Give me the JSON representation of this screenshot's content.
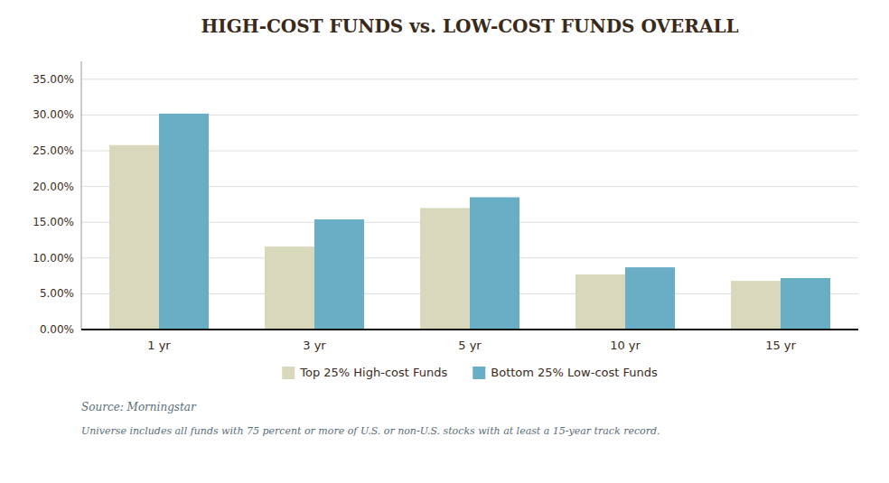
{
  "chart_data": {
    "type": "bar",
    "title": "HIGH-COST FUNDS vs. LOW-COST FUNDS OVERALL",
    "categories": [
      "1 yr",
      "3 yr",
      "5 yr",
      "10 yr",
      "15 yr"
    ],
    "series": [
      {
        "name": "Top 25% High-cost Funds",
        "color": "#d8d9bc",
        "values": [
          0.258,
          0.116,
          0.17,
          0.077,
          0.068
        ]
      },
      {
        "name": "Bottom 25% Low-cost Funds",
        "color": "#6aaec6",
        "values": [
          0.302,
          0.154,
          0.185,
          0.087,
          0.072
        ]
      }
    ],
    "ylim": [
      0,
      0.375
    ],
    "yticks": [
      {
        "value": 0.0,
        "label": "0.00%"
      },
      {
        "value": 0.05,
        "label": "5.00%"
      },
      {
        "value": 0.1,
        "label": "10.00%"
      },
      {
        "value": 0.15,
        "label": "15.00%"
      },
      {
        "value": 0.2,
        "label": "20.00%"
      },
      {
        "value": 0.25,
        "label": "25.00%"
      },
      {
        "value": 0.3,
        "label": "30.00%"
      },
      {
        "value": 0.35,
        "label": "35.00%"
      }
    ],
    "grid": true,
    "legend": "bottom",
    "annotations": [
      "Source: Morningstar",
      "Universe includes all funds with 75 percent or more of U.S. or non-U.S. stocks with at least a 15-year track record."
    ]
  }
}
